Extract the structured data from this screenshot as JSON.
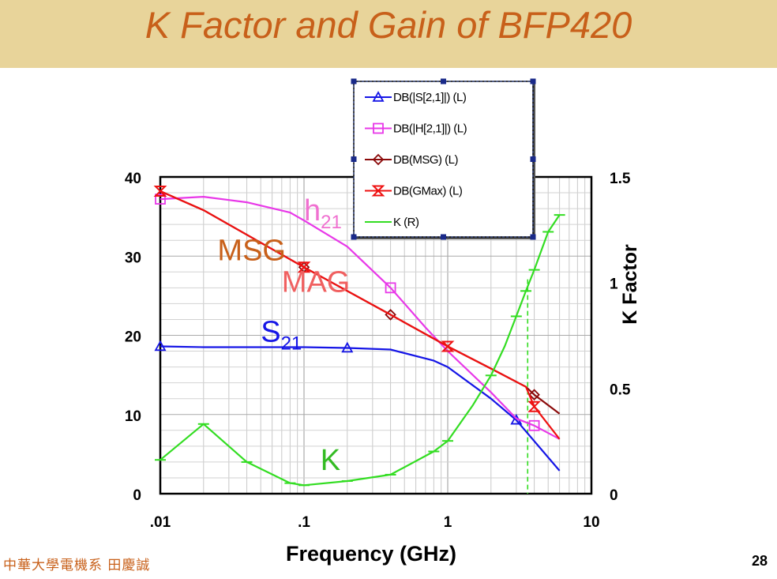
{
  "slide": {
    "title": "K Factor and Gain of BFP420",
    "footer_left": "中華大學電機系 田慶誠",
    "page_number": "28"
  },
  "chart_data": {
    "type": "line",
    "title": "K Factor and Gain of BFP420",
    "xlabel": "Frequency (GHz)",
    "ylabel": "",
    "y2label": "K Factor",
    "xscale": "log",
    "xlim": [
      0.01,
      10
    ],
    "ylim": [
      0,
      40
    ],
    "y2lim": [
      0,
      1.5
    ],
    "grid": true,
    "legend_position": "top-center",
    "x_tick_labels": [
      ".01",
      ".1",
      "1",
      "10"
    ],
    "x_tick_values": [
      0.01,
      0.1,
      1,
      10
    ],
    "y_tick_labels": [
      "0",
      "10",
      "20",
      "30",
      "40"
    ],
    "y_tick_values": [
      0,
      10,
      20,
      30,
      40
    ],
    "y2_tick_labels": [
      "0",
      "0.5",
      "1",
      "1.5"
    ],
    "y2_tick_values": [
      0,
      0.5,
      1,
      1.5
    ],
    "vline_x": 3.6,
    "series": [
      {
        "name": "DB(|S[2,1]|) (L)",
        "axis": "left",
        "color": "#1515e6",
        "marker": "triangle",
        "x": [
          0.01,
          0.02,
          0.05,
          0.1,
          0.2,
          0.4,
          0.8,
          1,
          2,
          3,
          6
        ],
        "y": [
          18.6,
          18.5,
          18.5,
          18.5,
          18.4,
          18.2,
          16.8,
          16.0,
          12.0,
          9.3,
          2.9
        ],
        "marker_x": [
          0.01,
          0.2,
          3
        ]
      },
      {
        "name": "DB(|H[2,1]|) (L)",
        "axis": "left",
        "color": "#e838e8",
        "marker": "square",
        "x": [
          0.01,
          0.02,
          0.04,
          0.08,
          0.1,
          0.2,
          0.4,
          0.7,
          1,
          2,
          3,
          4,
          6
        ],
        "y": [
          37.2,
          37.5,
          36.8,
          35.5,
          34.5,
          31.2,
          26.0,
          21.0,
          18.0,
          12.8,
          9.5,
          8.6,
          6.9
        ],
        "marker_x": [
          0.01,
          0.4,
          4
        ]
      },
      {
        "name": "DB(MSG) (L)",
        "axis": "left",
        "color": "#8b0a0a",
        "marker": "diamond",
        "x": [
          0.01,
          0.02,
          0.1,
          0.4,
          1,
          2,
          3.5,
          4,
          6
        ],
        "y": [
          38.2,
          35.8,
          28.6,
          22.6,
          18.6,
          15.8,
          13.5,
          12.5,
          10.1
        ],
        "marker_x": [
          0.1,
          0.4,
          4
        ]
      },
      {
        "name": "DB(GMax) (L)",
        "axis": "left",
        "color": "#ee1111",
        "marker": "hourglass",
        "x": [
          0.01,
          0.02,
          0.1,
          0.4,
          1,
          2,
          3.5,
          4,
          6
        ],
        "y": [
          38.2,
          35.8,
          28.6,
          22.6,
          18.6,
          15.8,
          13.5,
          11.0,
          6.9
        ],
        "marker_x": [
          0.01,
          0.1,
          1,
          4
        ]
      },
      {
        "name": "K (R)",
        "axis": "right",
        "color": "#33dd22",
        "marker": "tick",
        "x": [
          0.01,
          0.02,
          0.04,
          0.08,
          0.1,
          0.2,
          0.4,
          0.8,
          1,
          1.5,
          2,
          2.5,
          3,
          3.5,
          4,
          5,
          6
        ],
        "y": [
          0.16,
          0.33,
          0.15,
          0.05,
          0.04,
          0.06,
          0.09,
          0.2,
          0.25,
          0.42,
          0.56,
          0.7,
          0.84,
          0.96,
          1.06,
          1.24,
          1.32
        ],
        "marker_x": [
          0.01,
          0.02,
          0.04,
          0.08,
          0.1,
          0.2,
          0.4,
          0.8,
          1,
          2,
          3,
          3.5,
          4,
          5,
          6
        ]
      }
    ],
    "annotations": [
      {
        "text": "h",
        "sub": "21",
        "x": 0.1,
        "y": 34.5,
        "color": "#f070d0"
      },
      {
        "text": "MSG",
        "sub": "",
        "x": 0.025,
        "y": 29.5,
        "color": "#c8601a"
      },
      {
        "text": "MAG",
        "sub": "",
        "x": 0.07,
        "y": 25.5,
        "color": "#f06060"
      },
      {
        "text": "S",
        "sub": "21",
        "x": 0.05,
        "y": 19.2,
        "color": "#1515e6"
      },
      {
        "text": "K",
        "sub": "",
        "x": 0.13,
        "y": 3.0,
        "color": "#33bb22"
      }
    ]
  }
}
